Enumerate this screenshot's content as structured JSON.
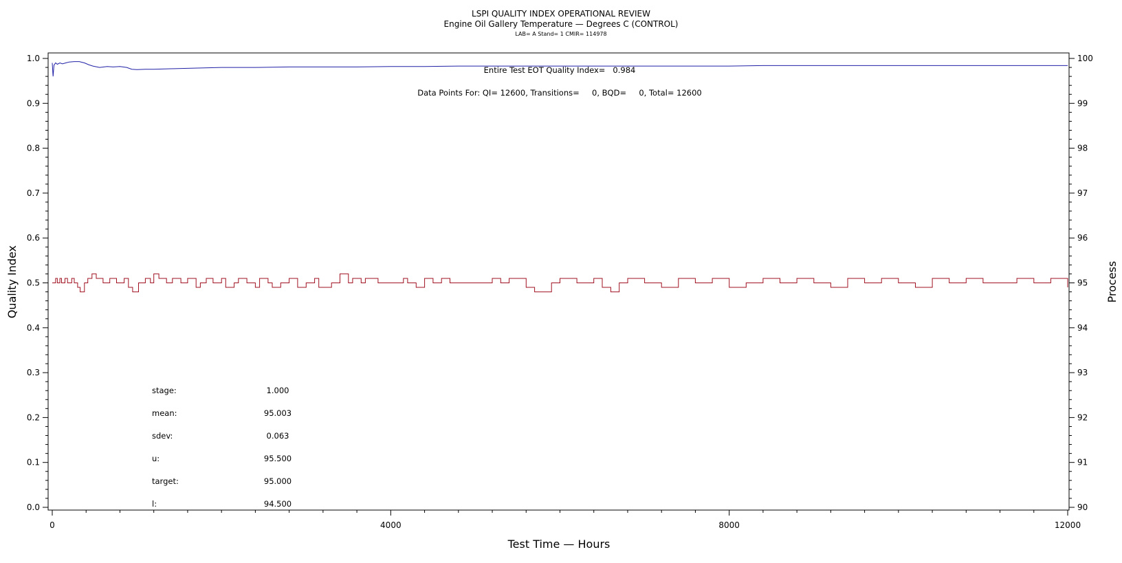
{
  "chart_data": {
    "type": "line",
    "title": "LSPI QUALITY INDEX OPERATIONAL REVIEW",
    "subtitle": "Engine Oil Gallery Temperature — Degrees C (CONTROL)",
    "subtitle2": "LAB= A Stand= 1 CMIR= 114978",
    "xlabel": "Test Time — Hours",
    "ylabel_left": "Quality Index",
    "ylabel_right": "Process",
    "xlim": [
      0,
      12000
    ],
    "ylim_left": [
      0,
      1.0
    ],
    "ylim_right": [
      90,
      100
    ],
    "x_ticks": [
      "0",
      "4000",
      "8000",
      "12000"
    ],
    "y_ticks_left": [
      "0.0",
      "0.1",
      "0.2",
      "0.3",
      "0.4",
      "0.5",
      "0.6",
      "0.7",
      "0.8",
      "0.9",
      "1.0"
    ],
    "y_ticks_right": [
      "90",
      "91",
      "92",
      "93",
      "94",
      "95",
      "96",
      "97",
      "98",
      "99",
      "100"
    ],
    "grid": false,
    "annotations": {
      "quality_index_text": "Entire Test EOT Quality Index=   0.984",
      "data_points_text": "Data Points For: QI= 12600, Transitions=     0, BQD=     0, Total= 12600"
    },
    "stats": [
      {
        "label": "stage:",
        "value": "1.000"
      },
      {
        "label": "mean:",
        "value": "95.003"
      },
      {
        "label": "sdev:",
        "value": "0.063"
      },
      {
        "label": "u:",
        "value": "95.500"
      },
      {
        "label": "target:",
        "value": "95.000"
      },
      {
        "label": "l:",
        "value": "94.500"
      }
    ],
    "series": [
      {
        "axis": "left",
        "color": "#1f1fa6",
        "x": [
          0,
          10,
          20,
          40,
          60,
          90,
          120,
          160,
          200,
          260,
          320,
          380,
          430,
          480,
          560,
          650,
          720,
          800,
          880,
          940,
          1000,
          1100,
          1200,
          1400,
          1600,
          1800,
          2000,
          2400,
          2800,
          3200,
          3600,
          4000,
          4400,
          4800,
          5200,
          5600,
          6000,
          6400,
          6800,
          7200,
          7600,
          8000,
          8400,
          8800,
          9200,
          9600,
          10000,
          10400,
          10800,
          11200,
          11600,
          12000
        ],
        "values": [
          0.99,
          0.96,
          0.985,
          0.99,
          0.987,
          0.99,
          0.988,
          0.99,
          0.992,
          0.993,
          0.993,
          0.99,
          0.986,
          0.983,
          0.98,
          0.982,
          0.981,
          0.982,
          0.98,
          0.976,
          0.975,
          0.976,
          0.976,
          0.977,
          0.978,
          0.979,
          0.98,
          0.98,
          0.981,
          0.981,
          0.981,
          0.982,
          0.982,
          0.983,
          0.983,
          0.983,
          0.983,
          0.983,
          0.983,
          0.983,
          0.983,
          0.983,
          0.984,
          0.984,
          0.984,
          0.984,
          0.984,
          0.984,
          0.984,
          0.984,
          0.984,
          0.984
        ]
      },
      {
        "axis": "right",
        "color": "#a01020",
        "x": [
          0,
          40,
          60,
          90,
          110,
          150,
          180,
          230,
          260,
          300,
          330,
          380,
          420,
          470,
          520,
          600,
          680,
          760,
          850,
          900,
          950,
          1020,
          1100,
          1160,
          1200,
          1260,
          1350,
          1420,
          1520,
          1600,
          1700,
          1750,
          1820,
          1900,
          2000,
          2050,
          2150,
          2200,
          2300,
          2400,
          2450,
          2550,
          2600,
          2700,
          2800,
          2900,
          3000,
          3100,
          3150,
          3300,
          3400,
          3500,
          3550,
          3650,
          3700,
          3850,
          4000,
          4150,
          4200,
          4300,
          4400,
          4500,
          4600,
          4700,
          4800,
          5000,
          5200,
          5300,
          5400,
          5600,
          5700,
          5800,
          5900,
          6000,
          6200,
          6400,
          6500,
          6600,
          6700,
          6800,
          7000,
          7200,
          7400,
          7600,
          7800,
          8000,
          8200,
          8400,
          8600,
          8800,
          9000,
          9200,
          9400,
          9600,
          9800,
          10000,
          10200,
          10400,
          10600,
          10800,
          11000,
          11200,
          11400,
          11600,
          11800,
          12000
        ],
        "values": [
          95.0,
          95.1,
          95.0,
          95.1,
          95.0,
          95.1,
          95.0,
          95.1,
          95.0,
          94.9,
          94.8,
          95.0,
          95.1,
          95.2,
          95.1,
          95.0,
          95.1,
          95.0,
          95.1,
          94.9,
          94.8,
          95.0,
          95.1,
          95.0,
          95.2,
          95.1,
          95.0,
          95.1,
          95.0,
          95.1,
          94.9,
          95.0,
          95.1,
          95.0,
          95.1,
          94.9,
          95.0,
          95.1,
          95.0,
          94.9,
          95.1,
          95.0,
          94.9,
          95.0,
          95.1,
          94.9,
          95.0,
          95.1,
          94.9,
          95.0,
          95.2,
          95.0,
          95.1,
          95.0,
          95.1,
          95.0,
          95.0,
          95.1,
          95.0,
          94.9,
          95.1,
          95.0,
          95.1,
          95.0,
          95.0,
          95.0,
          95.1,
          95.0,
          95.1,
          94.9,
          94.8,
          94.8,
          95.0,
          95.1,
          95.0,
          95.1,
          94.9,
          94.8,
          95.0,
          95.1,
          95.0,
          94.9,
          95.1,
          95.0,
          95.1,
          94.9,
          95.0,
          95.1,
          95.0,
          95.1,
          95.0,
          94.9,
          95.1,
          95.0,
          95.1,
          95.0,
          94.9,
          95.1,
          95.0,
          95.1,
          95.0,
          95.0,
          95.1,
          95.0,
          95.1,
          94.9
        ]
      }
    ]
  }
}
